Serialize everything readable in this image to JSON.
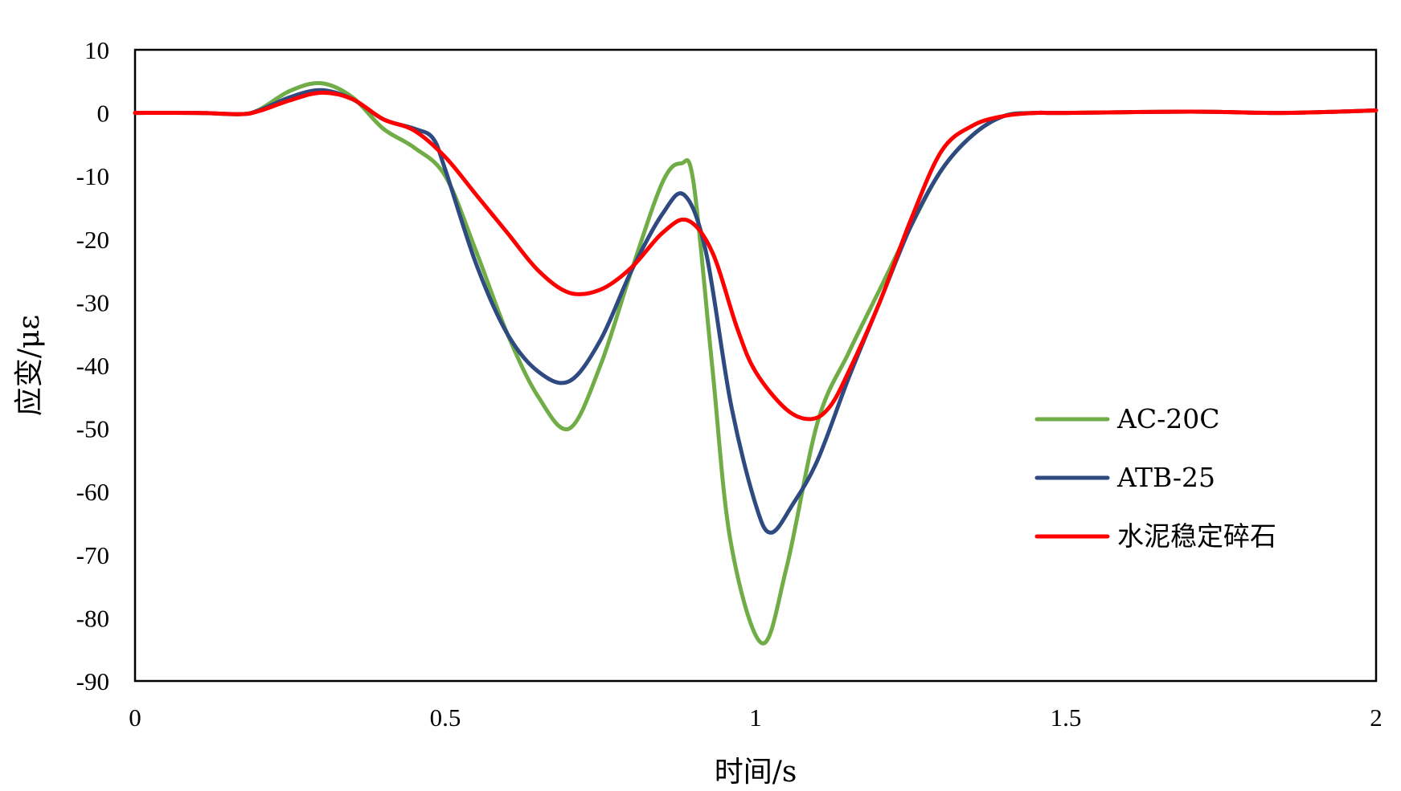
{
  "chart_data": {
    "type": "line",
    "title": "",
    "xlabel": "时间/s",
    "ylabel": "应变/με",
    "xlim": [
      0,
      2
    ],
    "ylim": [
      -90,
      10
    ],
    "x_ticks": [
      "0",
      "0.5",
      "1",
      "1.5",
      "2"
    ],
    "y_ticks": [
      "10",
      "0",
      "-10",
      "-20",
      "-30",
      "-40",
      "-50",
      "-60",
      "-70",
      "-80",
      "-90"
    ],
    "grid": false,
    "legend_position": "right",
    "series": [
      {
        "name": "AC-20C",
        "color": "#70ad47",
        "points": [
          [
            0,
            0
          ],
          [
            0.1,
            0
          ],
          [
            0.17,
            -0.2
          ],
          [
            0.2,
            0.5
          ],
          [
            0.25,
            3.5
          ],
          [
            0.3,
            4.7
          ],
          [
            0.35,
            2.5
          ],
          [
            0.4,
            -2.5
          ],
          [
            0.45,
            -5.5
          ],
          [
            0.5,
            -10
          ],
          [
            0.55,
            -22
          ],
          [
            0.6,
            -35
          ],
          [
            0.65,
            -45
          ],
          [
            0.7,
            -50
          ],
          [
            0.75,
            -40
          ],
          [
            0.8,
            -25
          ],
          [
            0.85,
            -11
          ],
          [
            0.88,
            -8
          ],
          [
            0.9,
            -11
          ],
          [
            0.93,
            -40
          ],
          [
            0.96,
            -68
          ],
          [
            1.01,
            -84
          ],
          [
            1.05,
            -72
          ],
          [
            1.1,
            -49
          ],
          [
            1.15,
            -38
          ],
          [
            1.2,
            -28
          ],
          [
            1.25,
            -18
          ],
          [
            1.3,
            -9
          ],
          [
            1.35,
            -3.5
          ],
          [
            1.4,
            -0.5
          ],
          [
            1.45,
            0
          ],
          [
            1.5,
            0
          ],
          [
            1.7,
            0.2
          ],
          [
            1.85,
            0
          ],
          [
            2,
            0.4
          ]
        ]
      },
      {
        "name": "ATB-25",
        "color": "#2f4a80",
        "points": [
          [
            0,
            0
          ],
          [
            0.1,
            0
          ],
          [
            0.17,
            -0.2
          ],
          [
            0.2,
            0.4
          ],
          [
            0.25,
            2.5
          ],
          [
            0.3,
            3.6
          ],
          [
            0.35,
            2.2
          ],
          [
            0.4,
            -1
          ],
          [
            0.45,
            -2.5
          ],
          [
            0.48,
            -4
          ],
          [
            0.5,
            -9
          ],
          [
            0.55,
            -24
          ],
          [
            0.6,
            -35
          ],
          [
            0.65,
            -41
          ],
          [
            0.7,
            -42.5
          ],
          [
            0.75,
            -36
          ],
          [
            0.8,
            -25
          ],
          [
            0.85,
            -16
          ],
          [
            0.885,
            -13
          ],
          [
            0.92,
            -22
          ],
          [
            0.96,
            -46
          ],
          [
            1.0,
            -62
          ],
          [
            1.025,
            -66.5
          ],
          [
            1.06,
            -62
          ],
          [
            1.1,
            -55
          ],
          [
            1.15,
            -42
          ],
          [
            1.2,
            -30
          ],
          [
            1.25,
            -18
          ],
          [
            1.3,
            -9
          ],
          [
            1.35,
            -3.5
          ],
          [
            1.4,
            -0.5
          ],
          [
            1.45,
            0
          ],
          [
            1.5,
            0
          ],
          [
            1.7,
            0.2
          ],
          [
            1.85,
            0
          ],
          [
            2,
            0.4
          ]
        ]
      },
      {
        "name": "水泥稳定碎石",
        "color": "#ff0000",
        "points": [
          [
            0,
            0
          ],
          [
            0.1,
            0
          ],
          [
            0.17,
            -0.2
          ],
          [
            0.2,
            0.3
          ],
          [
            0.25,
            2
          ],
          [
            0.3,
            3.2
          ],
          [
            0.35,
            2.2
          ],
          [
            0.4,
            -1
          ],
          [
            0.45,
            -2.8
          ],
          [
            0.5,
            -7
          ],
          [
            0.55,
            -13
          ],
          [
            0.6,
            -19
          ],
          [
            0.65,
            -25
          ],
          [
            0.7,
            -28.5
          ],
          [
            0.75,
            -28
          ],
          [
            0.8,
            -24.5
          ],
          [
            0.85,
            -19
          ],
          [
            0.89,
            -17
          ],
          [
            0.93,
            -22
          ],
          [
            0.97,
            -34
          ],
          [
            1.0,
            -41
          ],
          [
            1.05,
            -47
          ],
          [
            1.09,
            -48.5
          ],
          [
            1.12,
            -46.5
          ],
          [
            1.15,
            -41
          ],
          [
            1.2,
            -30
          ],
          [
            1.25,
            -17
          ],
          [
            1.3,
            -6
          ],
          [
            1.35,
            -2
          ],
          [
            1.4,
            -0.5
          ],
          [
            1.45,
            0
          ],
          [
            1.5,
            0
          ],
          [
            1.7,
            0.2
          ],
          [
            1.85,
            0
          ],
          [
            2,
            0.4
          ]
        ]
      }
    ]
  }
}
